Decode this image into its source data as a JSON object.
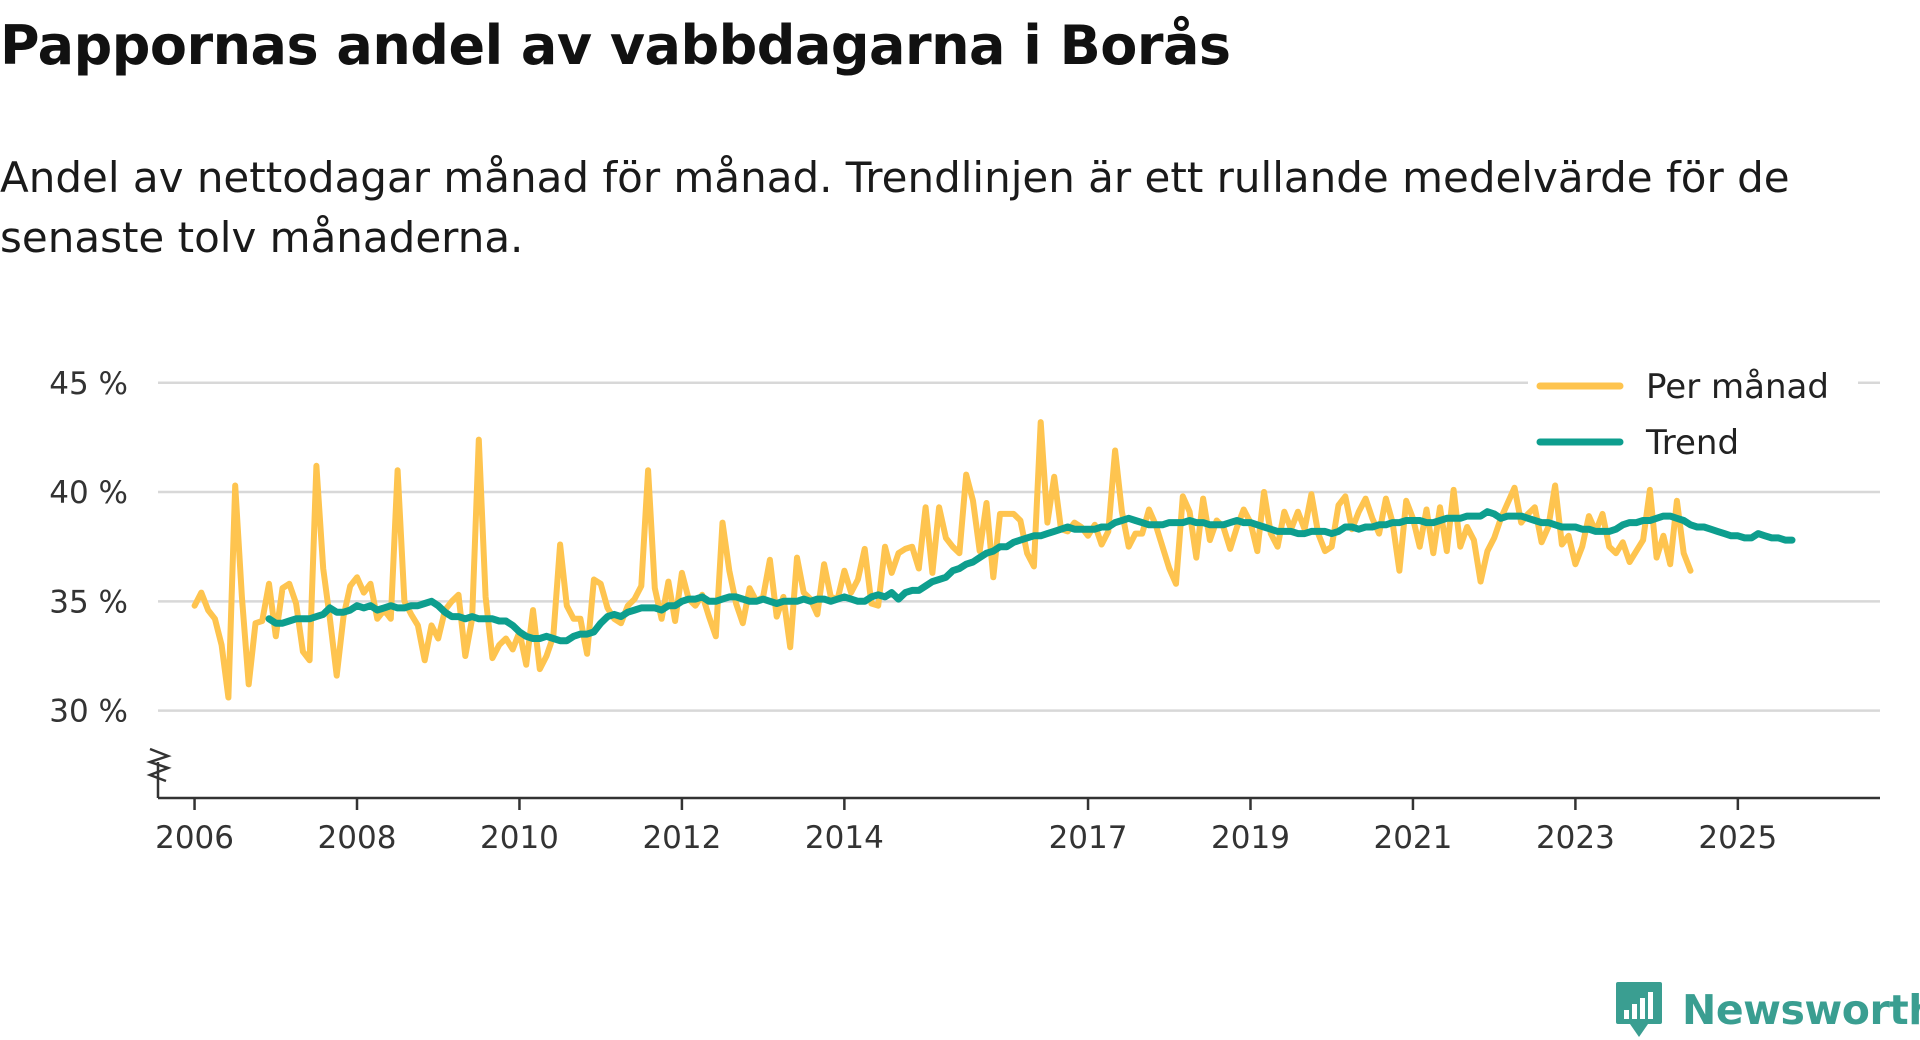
{
  "title": "Pappornas andel av vabbdagarna i Borås",
  "subtitle": "Andel av nettodagar månad för månad. Trendlinjen är ett rullande medelvärde för de senaste tolv månaderna.",
  "brand": {
    "name": "Newsworthy",
    "color": "#3a9e91"
  },
  "colors": {
    "monthly": "#fec44f",
    "trend": "#0d9e8e",
    "grid": "#d8d8d8",
    "axis": "#333333"
  },
  "chart_data": {
    "type": "line",
    "title": "Pappornas andel av vabbdagarna i Borås",
    "xlabel": "",
    "ylabel": "",
    "xlim": [
      2005.55,
      2026.75
    ],
    "ylim": [
      26,
      46.5
    ],
    "x_ticks": [
      2006,
      2008,
      2010,
      2012,
      2014,
      2017,
      2019,
      2021,
      2023,
      2025
    ],
    "x_tick_labels": [
      "2006",
      "2008",
      "2010",
      "2012",
      "2014",
      "2017",
      "2019",
      "2021",
      "2023",
      "2025"
    ],
    "y_ticks": [
      30,
      35,
      40,
      45
    ],
    "y_tick_labels": [
      "30 %",
      "35 %",
      "40 %",
      "45 %"
    ],
    "axis_break": true,
    "legend": {
      "position": "top-right",
      "entries": [
        "Per månad",
        "Trend"
      ]
    },
    "series": [
      {
        "name": "Per månad",
        "x_start": 2006.0,
        "x_step": 0.0833333,
        "values": [
          34.8,
          35.4,
          34.6,
          34.2,
          33.0,
          30.6,
          40.3,
          35.2,
          31.2,
          34.0,
          34.1,
          35.8,
          33.4,
          35.6,
          35.8,
          34.9,
          32.7,
          32.3,
          41.2,
          36.5,
          34.2,
          31.6,
          34.3,
          35.7,
          36.1,
          35.4,
          35.8,
          34.2,
          34.6,
          34.2,
          41.0,
          35.0,
          34.4,
          33.9,
          32.3,
          33.9,
          33.3,
          34.6,
          35.0,
          35.3,
          32.5,
          34.2,
          42.4,
          35.2,
          32.4,
          33.0,
          33.3,
          32.8,
          33.6,
          32.1,
          34.6,
          31.9,
          32.5,
          33.4,
          37.6,
          34.8,
          34.2,
          34.2,
          32.6,
          36.0,
          35.8,
          34.7,
          34.2,
          34.0,
          34.8,
          35.1,
          35.7,
          41.0,
          35.6,
          34.2,
          35.9,
          34.1,
          36.3,
          35.1,
          34.8,
          35.3,
          34.3,
          33.4,
          38.6,
          36.4,
          34.9,
          34.0,
          35.6,
          35.0,
          35.2,
          36.9,
          34.3,
          35.2,
          32.9,
          37.0,
          35.4,
          35.1,
          34.4,
          36.7,
          35.2,
          35.1,
          36.4,
          35.4,
          36.0,
          37.4,
          34.9,
          34.8,
          37.5,
          36.3,
          37.2,
          37.4,
          37.5,
          36.5,
          39.3,
          36.3,
          39.3,
          37.9,
          37.5,
          37.2,
          40.8,
          39.6,
          37.3,
          39.5,
          36.1,
          39.0,
          39.0,
          39.0,
          38.7,
          37.2,
          36.6,
          43.2,
          38.6,
          40.7,
          38.3,
          38.2,
          38.6,
          38.4,
          38.0,
          38.5,
          37.6,
          38.2,
          41.9,
          39.1,
          37.5,
          38.1,
          38.1,
          39.2,
          38.5,
          37.5,
          36.5,
          35.8,
          39.8,
          39.1,
          37.0,
          39.7,
          37.8,
          38.7,
          38.4,
          37.4,
          38.4,
          39.2,
          38.6,
          37.3,
          40.0,
          38.1,
          37.5,
          39.1,
          38.3,
          39.1,
          38.3,
          39.9,
          38.1,
          37.3,
          37.5,
          39.4,
          39.8,
          38.3,
          39.1,
          39.7,
          38.8,
          38.1,
          39.7,
          38.6,
          36.4,
          39.6,
          38.8,
          37.5,
          39.2,
          37.2,
          39.3,
          37.3,
          40.1,
          37.5,
          38.4,
          37.8,
          35.9,
          37.3,
          37.9,
          38.8,
          39.5,
          40.2,
          38.6,
          39.0,
          39.3,
          37.7,
          38.4,
          40.3,
          37.6,
          38.0,
          36.7,
          37.5,
          38.9,
          38.2,
          39.0,
          37.5,
          37.2,
          37.7,
          36.8,
          37.3,
          37.8,
          40.1,
          37.0,
          38.0,
          36.7,
          39.6,
          37.2,
          36.4
        ]
      },
      {
        "name": "Trend",
        "x_start": 2006.9167,
        "x_step": 0.0833333,
        "values": [
          34.2,
          34.0,
          34.0,
          34.1,
          34.2,
          34.2,
          34.2,
          34.3,
          34.4,
          34.7,
          34.5,
          34.5,
          34.6,
          34.8,
          34.7,
          34.8,
          34.6,
          34.7,
          34.8,
          34.7,
          34.7,
          34.8,
          34.8,
          34.9,
          35.0,
          34.8,
          34.5,
          34.3,
          34.3,
          34.2,
          34.3,
          34.2,
          34.2,
          34.2,
          34.1,
          34.1,
          33.9,
          33.6,
          33.4,
          33.3,
          33.3,
          33.4,
          33.3,
          33.2,
          33.2,
          33.4,
          33.5,
          33.5,
          33.6,
          34.0,
          34.3,
          34.4,
          34.3,
          34.5,
          34.6,
          34.7,
          34.7,
          34.7,
          34.6,
          34.8,
          34.8,
          35.0,
          35.1,
          35.1,
          35.2,
          35.0,
          35.0,
          35.1,
          35.2,
          35.2,
          35.1,
          35.0,
          35.0,
          35.1,
          35.0,
          34.9,
          35.0,
          35.0,
          35.0,
          35.1,
          35.0,
          35.1,
          35.1,
          35.0,
          35.1,
          35.2,
          35.1,
          35.0,
          35.0,
          35.2,
          35.3,
          35.2,
          35.4,
          35.1,
          35.4,
          35.5,
          35.5,
          35.7,
          35.9,
          36.0,
          36.1,
          36.4,
          36.5,
          36.7,
          36.8,
          37.0,
          37.2,
          37.3,
          37.5,
          37.5,
          37.7,
          37.8,
          37.9,
          38.0,
          38.0,
          38.1,
          38.2,
          38.3,
          38.4,
          38.3,
          38.3,
          38.3,
          38.3,
          38.4,
          38.4,
          38.6,
          38.7,
          38.8,
          38.7,
          38.6,
          38.5,
          38.5,
          38.5,
          38.6,
          38.6,
          38.6,
          38.7,
          38.6,
          38.6,
          38.5,
          38.5,
          38.5,
          38.6,
          38.7,
          38.6,
          38.6,
          38.5,
          38.4,
          38.3,
          38.2,
          38.2,
          38.2,
          38.1,
          38.1,
          38.2,
          38.2,
          38.2,
          38.1,
          38.2,
          38.4,
          38.4,
          38.3,
          38.4,
          38.4,
          38.5,
          38.5,
          38.6,
          38.6,
          38.7,
          38.7,
          38.7,
          38.6,
          38.6,
          38.7,
          38.8,
          38.8,
          38.8,
          38.9,
          38.9,
          38.9,
          39.1,
          39.0,
          38.8,
          38.9,
          38.9,
          38.9,
          38.8,
          38.7,
          38.6,
          38.6,
          38.5,
          38.4,
          38.4,
          38.4,
          38.3,
          38.3,
          38.2,
          38.2,
          38.2,
          38.3,
          38.5,
          38.6,
          38.6,
          38.7,
          38.7,
          38.8,
          38.9,
          38.9,
          38.8,
          38.7,
          38.5,
          38.4,
          38.4,
          38.3,
          38.2,
          38.1,
          38.0,
          38.0,
          37.9,
          37.9,
          38.1,
          38.0,
          37.9,
          37.9,
          37.8,
          37.8
        ]
      }
    ]
  }
}
